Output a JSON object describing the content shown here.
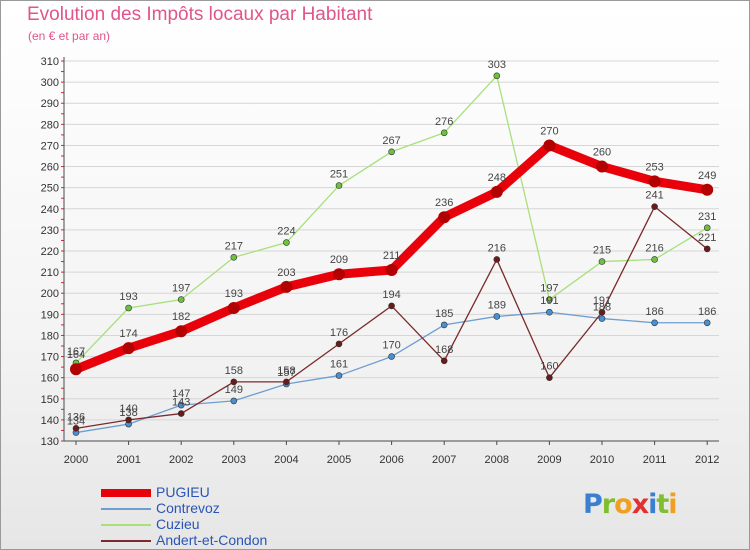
{
  "header": {
    "title": "Evolution des Impôts locaux par Habitant",
    "subtitle": "(en € et par an)"
  },
  "logo": {
    "text": "Proxiti"
  },
  "colors": {
    "title": "#e0558a",
    "legend_text": "#2a55b5",
    "axis": "#4a4a4a",
    "grid": "#d6d6d6"
  },
  "chart_data": {
    "type": "line",
    "title": "Evolution des Impôts locaux par Habitant",
    "subtitle": "(en € et par an)",
    "xlabel": "",
    "ylabel": "",
    "x": [
      "2000",
      "2001",
      "2002",
      "2003",
      "2004",
      "2005",
      "2006",
      "2007",
      "2008",
      "2009",
      "2010",
      "2011",
      "2012"
    ],
    "ylim": [
      130,
      310
    ],
    "yticks": [
      130,
      140,
      150,
      160,
      170,
      180,
      190,
      200,
      210,
      220,
      230,
      240,
      250,
      260,
      270,
      280,
      290,
      300,
      310
    ],
    "grid": true,
    "legend_position": "bottom-left",
    "series": [
      {
        "name": "PUGIEU",
        "color": "#e8000b",
        "marker": "#b30000",
        "values": [
          164,
          174,
          182,
          193,
          203,
          209,
          211,
          236,
          248,
          270,
          260,
          253,
          249
        ]
      },
      {
        "name": "Contrevoz",
        "color": "#6d9ecf",
        "marker": "#4a8fcf",
        "values": [
          134,
          138,
          147,
          149,
          157,
          161,
          170,
          185,
          189,
          191,
          188,
          186,
          186
        ]
      },
      {
        "name": "Cuzieu",
        "color": "#a8e07a",
        "marker": "#6cc23a",
        "values": [
          167,
          193,
          197,
          217,
          224,
          251,
          267,
          276,
          303,
          197,
          215,
          216,
          231
        ]
      },
      {
        "name": "Andert-et-Condon",
        "color": "#7a2a2a",
        "marker": "#6a1a1a",
        "values": [
          136,
          140,
          143,
          158,
          158,
          176,
          194,
          168,
          216,
          160,
          191,
          241,
          221
        ]
      }
    ]
  }
}
